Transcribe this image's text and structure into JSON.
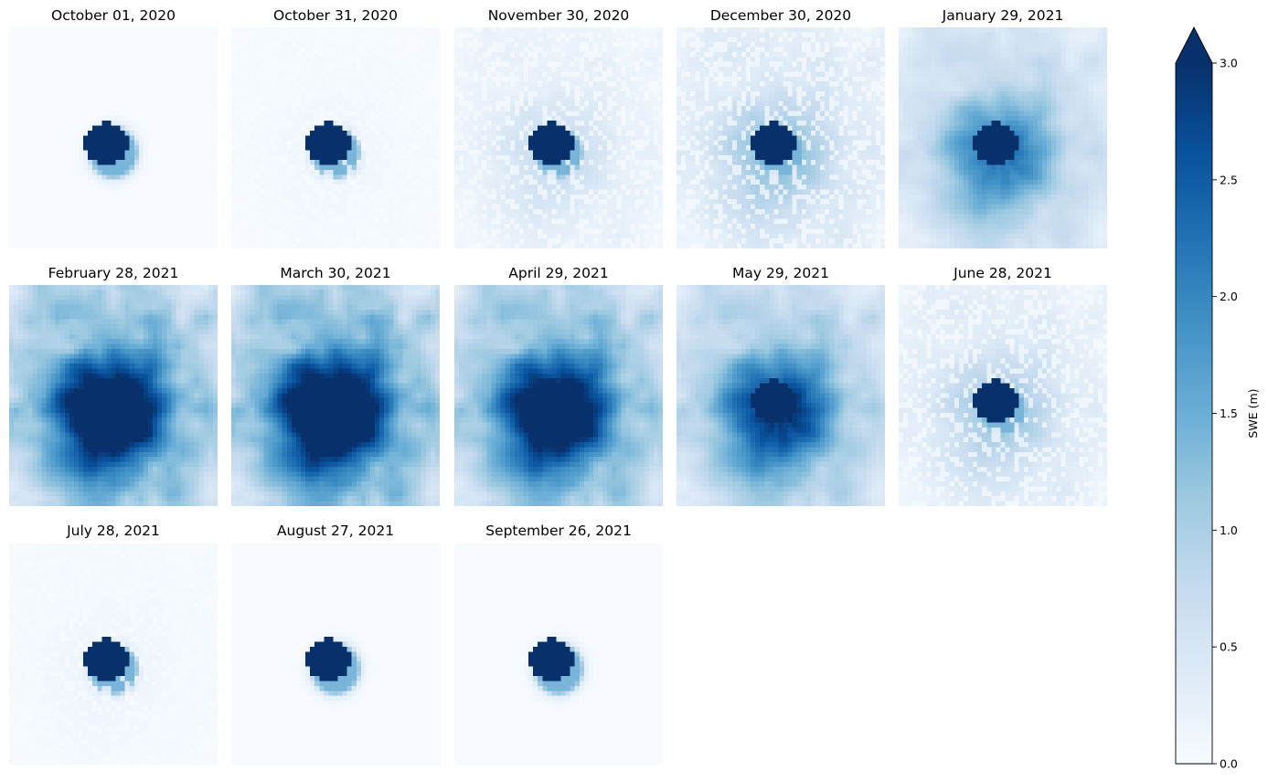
{
  "chart_data": {
    "type": "heatmap",
    "colormap": "Blues",
    "colorbar_extend": "max",
    "panels": [
      {
        "title": "October 01, 2020",
        "snow_level": 0.0
      },
      {
        "title": "October 31, 2020",
        "snow_level": 0.03
      },
      {
        "title": "November 30, 2020",
        "snow_level": 0.18
      },
      {
        "title": "December 30, 2020",
        "snow_level": 0.32
      },
      {
        "title": "January 29, 2021",
        "snow_level": 0.55
      },
      {
        "title": "February 28, 2021",
        "snow_level": 1.0
      },
      {
        "title": "March 30, 2021",
        "snow_level": 1.05
      },
      {
        "title": "April 29, 2021",
        "snow_level": 0.95
      },
      {
        "title": "May 29, 2021",
        "snow_level": 0.75
      },
      {
        "title": "June 28, 2021",
        "snow_level": 0.28
      },
      {
        "title": "July 28, 2021",
        "snow_level": 0.04
      },
      {
        "title": "August 27, 2021",
        "snow_level": 0.0
      },
      {
        "title": "September 26, 2021",
        "snow_level": 0.0
      }
    ],
    "colorbar": {
      "label": "SWE (m)",
      "range": [
        0.0,
        3.0
      ],
      "ticks": [
        {
          "value": 0.0,
          "label": "0.0"
        },
        {
          "value": 0.5,
          "label": "0.5"
        },
        {
          "value": 1.0,
          "label": "1.0"
        },
        {
          "value": 1.5,
          "label": "1.5"
        },
        {
          "value": 2.0,
          "label": "2.0"
        },
        {
          "value": 2.5,
          "label": "2.5"
        },
        {
          "value": 3.0,
          "label": "3.0"
        }
      ]
    }
  }
}
